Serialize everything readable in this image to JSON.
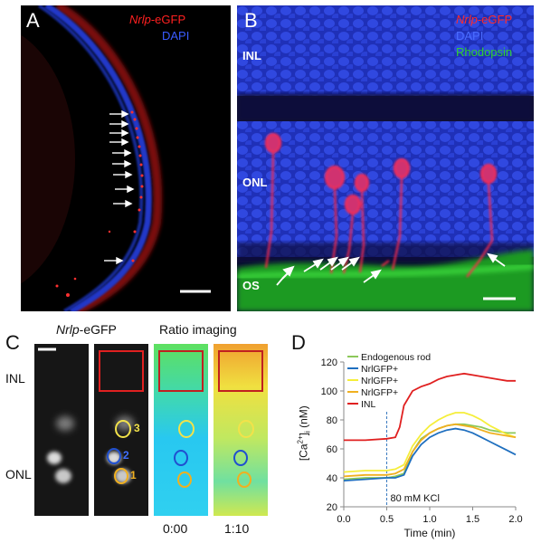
{
  "panel_a": {
    "letter": "A",
    "legend": {
      "marker": "Nrlp",
      "marker_suffix": "-eGFP",
      "stain": "DAPI"
    },
    "colors": {
      "egfp": "#ff2020",
      "dapi": "#3050ff"
    }
  },
  "panel_b": {
    "letter": "B",
    "legend": {
      "marker": "Nrlp",
      "marker_suffix": "-eGFP",
      "stain": "DAPI",
      "rhodopsin": "Rhodopsin"
    },
    "layers": {
      "inl": "INL",
      "onl": "ONL",
      "os": "OS"
    },
    "colors": {
      "rhodopsin": "#30d030"
    }
  },
  "panel_c": {
    "letter": "C",
    "title_marker": "Nrlp",
    "title_suffix": "-eGFP",
    "title_ratio": "Ratio imaging",
    "row_inl": "INL",
    "row_onl": "ONL",
    "roi_labels": [
      "3",
      "2",
      "1"
    ],
    "times": [
      "0:00",
      "1:10"
    ]
  },
  "panel_d": {
    "letter": "D",
    "annotation": "80 mM KCl",
    "ylabel_main": "[Ca",
    "ylabel_sup": "2+",
    "ylabel_rest": "]",
    "ylabel_sub": "i",
    "ylabel_unit": " (nM)"
  },
  "chart_data": {
    "type": "line",
    "xlabel": "Time (min)",
    "ylabel": "[Ca2+]i (nM)",
    "xlim": [
      0,
      2
    ],
    "ylim": [
      20,
      120
    ],
    "xticks": [
      "0.0",
      "0.5",
      "1.0",
      "1.5",
      "2.0"
    ],
    "yticks": [
      "20",
      "40",
      "60",
      "80",
      "100",
      "120"
    ],
    "legend_position": "top-left",
    "annotation_x": 0.5,
    "series": [
      {
        "name": "Endogenous rod",
        "color": "#8cc85a",
        "x": [
          0,
          0.25,
          0.5,
          0.6,
          0.7,
          0.8,
          0.9,
          1.0,
          1.1,
          1.2,
          1.3,
          1.4,
          1.5,
          1.6,
          1.7,
          1.8,
          1.9,
          2.0
        ],
        "y": [
          39,
          40,
          40,
          41,
          43,
          58,
          67,
          71,
          74,
          76,
          77,
          77,
          76,
          75,
          73,
          72,
          71,
          71
        ]
      },
      {
        "name": "NrlGFP+",
        "color": "#1f6fbf",
        "x": [
          0,
          0.25,
          0.5,
          0.6,
          0.7,
          0.8,
          0.9,
          1.0,
          1.1,
          1.2,
          1.3,
          1.4,
          1.5,
          1.6,
          1.7,
          1.8,
          1.9,
          2.0
        ],
        "y": [
          38,
          39,
          40,
          40,
          42,
          55,
          63,
          68,
          71,
          73,
          74,
          73,
          71,
          68,
          65,
          62,
          59,
          56
        ]
      },
      {
        "name": "NrlGFP+",
        "color": "#f5ee3a",
        "x": [
          0,
          0.25,
          0.5,
          0.6,
          0.7,
          0.8,
          0.9,
          1.0,
          1.1,
          1.2,
          1.3,
          1.4,
          1.5,
          1.6,
          1.7,
          1.8,
          1.9,
          2.0
        ],
        "y": [
          44,
          45,
          45,
          46,
          49,
          62,
          70,
          76,
          80,
          83,
          85,
          85,
          83,
          80,
          76,
          73,
          70,
          68
        ]
      },
      {
        "name": "NrlGFP+",
        "color": "#f0b020",
        "x": [
          0,
          0.25,
          0.5,
          0.6,
          0.7,
          0.8,
          0.9,
          1.0,
          1.1,
          1.2,
          1.3,
          1.4,
          1.5,
          1.6,
          1.7,
          1.8,
          1.9,
          2.0
        ],
        "y": [
          41,
          42,
          42,
          43,
          46,
          58,
          66,
          71,
          74,
          76,
          77,
          76,
          75,
          73,
          71,
          70,
          69,
          68
        ]
      },
      {
        "name": "INL",
        "color": "#e02020",
        "x": [
          0,
          0.25,
          0.5,
          0.6,
          0.65,
          0.7,
          0.8,
          0.9,
          1.0,
          1.1,
          1.2,
          1.3,
          1.4,
          1.5,
          1.6,
          1.7,
          1.8,
          1.9,
          2.0
        ],
        "y": [
          66,
          66,
          67,
          68,
          75,
          90,
          100,
          103,
          105,
          108,
          110,
          111,
          112,
          111,
          110,
          109,
          108,
          107,
          107
        ]
      }
    ]
  }
}
